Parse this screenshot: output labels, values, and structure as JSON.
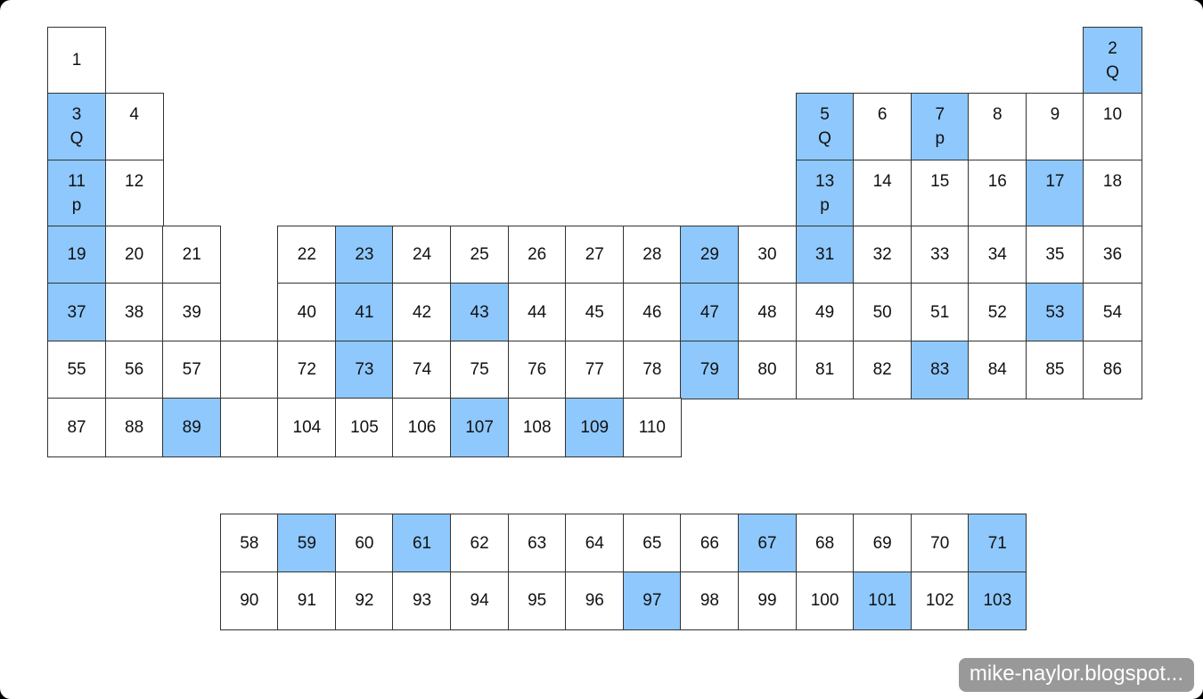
{
  "highlight_color": "#8ec8fd",
  "grid": {
    "rows": [
      [
        {
          "n": "1"
        },
        null,
        null,
        null,
        null,
        null,
        null,
        null,
        null,
        null,
        null,
        null,
        null,
        null,
        null,
        null,
        null,
        null,
        {
          "n": "2",
          "sub": "Q",
          "hl": true
        }
      ],
      [
        {
          "n": "3",
          "sub": "Q",
          "hl": true
        },
        {
          "n": "4",
          "sub": ""
        },
        null,
        null,
        null,
        null,
        null,
        null,
        null,
        null,
        null,
        null,
        null,
        {
          "n": "5",
          "sub": "Q",
          "hl": true
        },
        {
          "n": "6",
          "sub": ""
        },
        {
          "n": "7",
          "sub": "p",
          "hl": true
        },
        {
          "n": "8",
          "sub": ""
        },
        {
          "n": "9",
          "sub": ""
        },
        {
          "n": "10",
          "sub": ""
        }
      ],
      [
        {
          "n": "11",
          "sub": "p",
          "hl": true
        },
        {
          "n": "12",
          "sub": ""
        },
        null,
        null,
        null,
        null,
        null,
        null,
        null,
        null,
        null,
        null,
        null,
        {
          "n": "13",
          "sub": "p",
          "hl": true
        },
        {
          "n": "14",
          "sub": ""
        },
        {
          "n": "15",
          "sub": ""
        },
        {
          "n": "16",
          "sub": ""
        },
        {
          "n": "17",
          "sub": "",
          "hl": true
        },
        {
          "n": "18",
          "sub": ""
        }
      ],
      [
        {
          "n": "19",
          "hl": true
        },
        {
          "n": "20"
        },
        {
          "n": "21"
        },
        null,
        {
          "n": "22"
        },
        {
          "n": "23",
          "hl": true
        },
        {
          "n": "24"
        },
        {
          "n": "25"
        },
        {
          "n": "26"
        },
        {
          "n": "27"
        },
        {
          "n": "28"
        },
        {
          "n": "29",
          "hl": true
        },
        {
          "n": "30"
        },
        {
          "n": "31",
          "hl": true
        },
        {
          "n": "32"
        },
        {
          "n": "33"
        },
        {
          "n": "34"
        },
        {
          "n": "35"
        },
        {
          "n": "36"
        }
      ],
      [
        {
          "n": "37",
          "hl": true
        },
        {
          "n": "38"
        },
        {
          "n": "39"
        },
        null,
        {
          "n": "40"
        },
        {
          "n": "41",
          "hl": true
        },
        {
          "n": "42"
        },
        {
          "n": "43",
          "hl": true
        },
        {
          "n": "44"
        },
        {
          "n": "45"
        },
        {
          "n": "46"
        },
        {
          "n": "47",
          "hl": true
        },
        {
          "n": "48"
        },
        {
          "n": "49"
        },
        {
          "n": "50"
        },
        {
          "n": "51"
        },
        {
          "n": "52"
        },
        {
          "n": "53",
          "hl": true
        },
        {
          "n": "54"
        }
      ],
      [
        {
          "n": "55"
        },
        {
          "n": "56"
        },
        {
          "n": "57"
        },
        {
          "n": ""
        },
        {
          "n": "72"
        },
        {
          "n": "73",
          "hl": true
        },
        {
          "n": "74"
        },
        {
          "n": "75"
        },
        {
          "n": "76"
        },
        {
          "n": "77"
        },
        {
          "n": "78"
        },
        {
          "n": "79",
          "hl": true
        },
        {
          "n": "80"
        },
        {
          "n": "81"
        },
        {
          "n": "82"
        },
        {
          "n": "83",
          "hl": true
        },
        {
          "n": "84"
        },
        {
          "n": "85"
        },
        {
          "n": "86"
        }
      ],
      [
        {
          "n": "87"
        },
        {
          "n": "88"
        },
        {
          "n": "89",
          "hl": true
        },
        {
          "n": ""
        },
        {
          "n": "104"
        },
        {
          "n": "105"
        },
        {
          "n": "106"
        },
        {
          "n": "107",
          "hl": true
        },
        {
          "n": "108"
        },
        {
          "n": "109",
          "hl": true
        },
        {
          "n": "110"
        },
        null,
        null,
        null,
        null,
        null,
        null,
        null,
        null
      ]
    ],
    "f_block": [
      [
        {
          "n": "58"
        },
        {
          "n": "59",
          "hl": true
        },
        {
          "n": "60"
        },
        {
          "n": "61",
          "hl": true
        },
        {
          "n": "62"
        },
        {
          "n": "63"
        },
        {
          "n": "64"
        },
        {
          "n": "65"
        },
        {
          "n": "66"
        },
        {
          "n": "67",
          "hl": true
        },
        {
          "n": "68"
        },
        {
          "n": "69"
        },
        {
          "n": "70"
        },
        {
          "n": "71",
          "hl": true
        }
      ],
      [
        {
          "n": "90"
        },
        {
          "n": "91"
        },
        {
          "n": "92"
        },
        {
          "n": "93"
        },
        {
          "n": "94"
        },
        {
          "n": "95"
        },
        {
          "n": "96"
        },
        {
          "n": "97",
          "hl": true
        },
        {
          "n": "98"
        },
        {
          "n": "99"
        },
        {
          "n": "100"
        },
        {
          "n": "101",
          "hl": true
        },
        {
          "n": "102"
        },
        {
          "n": "103",
          "hl": true
        }
      ]
    ]
  },
  "watermark": "mike-naylor.blogspot..."
}
